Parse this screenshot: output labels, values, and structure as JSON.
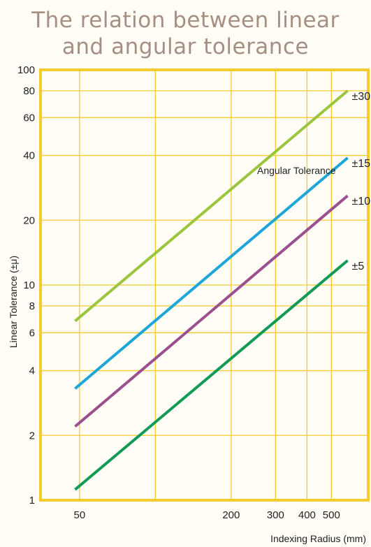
{
  "title_line1": "The relation between linear",
  "title_line2": "and angular tolerance",
  "chart_data": {
    "type": "line",
    "xlabel": "Indexing Radius (mm)",
    "ylabel": "Linear Tolerance (±μ)",
    "x_scale": "log",
    "y_scale": "log",
    "xlim": [
      35,
      700
    ],
    "ylim": [
      1,
      100
    ],
    "x_ticks": [
      50,
      200,
      300,
      400,
      500
    ],
    "x_tick_labels": [
      "50",
      "200",
      "300",
      "400",
      "500"
    ],
    "x_gridlines": [
      50,
      100,
      200,
      300,
      400,
      500
    ],
    "y_ticks": [
      1,
      2,
      4,
      6,
      8,
      10,
      20,
      40,
      60,
      80,
      100
    ],
    "y_tick_labels": [
      "1",
      "2",
      "4",
      "6",
      "8",
      "10",
      "20",
      "40",
      "60",
      "80",
      "100"
    ],
    "grid": true,
    "annotation": "Angular Tolerance",
    "series": [
      {
        "name": "±30",
        "color": "#9bc53d",
        "x": [
          48,
          580
        ],
        "y": [
          6.8,
          80
        ]
      },
      {
        "name": "±15",
        "color": "#1fa6d8",
        "x": [
          48,
          580
        ],
        "y": [
          3.3,
          39
        ]
      },
      {
        "name": "±10",
        "color": "#9a4f8f",
        "x": [
          48,
          580
        ],
        "y": [
          2.2,
          26
        ]
      },
      {
        "name": "±5",
        "color": "#129a57",
        "x": [
          48,
          580
        ],
        "y": [
          1.12,
          13
        ]
      }
    ],
    "frame_color": "#f5cc2e",
    "grid_color": "#f5cc2e"
  }
}
